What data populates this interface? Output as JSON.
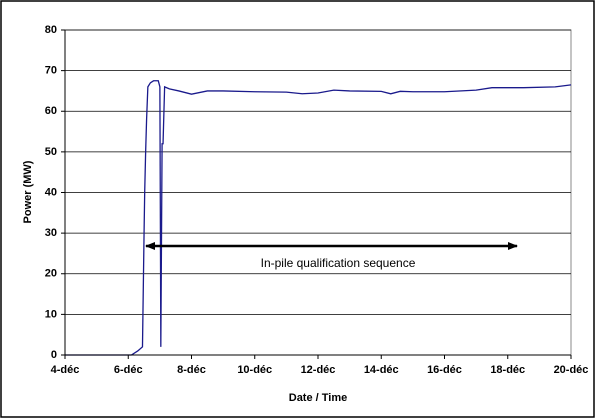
{
  "chart_data": {
    "type": "line",
    "xlabel": "Date / Time",
    "ylabel": "Power (MW)",
    "annotation": "In-pile qualification sequence",
    "color": "#1a1a8c",
    "x": [
      4,
      6.1,
      6.3,
      6.45,
      6.5,
      6.52,
      6.55,
      6.58,
      6.62,
      6.7,
      6.8,
      6.95,
      7.0,
      7.03,
      7.07,
      7.1,
      7.15,
      7.3,
      7.6,
      8.0,
      8.5,
      9,
      10,
      11,
      11.5,
      12,
      12.5,
      13,
      14,
      14.3,
      14.6,
      15,
      16,
      17,
      17.5,
      18.5,
      19.5,
      20
    ],
    "values": [
      0,
      0,
      1,
      2,
      30,
      40,
      50,
      58,
      66,
      67,
      67.5,
      67.5,
      66,
      2,
      52,
      52,
      66,
      65.5,
      65,
      64.2,
      65,
      65,
      64.8,
      64.7,
      64.3,
      64.5,
      65.2,
      65,
      64.9,
      64.3,
      64.9,
      64.8,
      64.8,
      65.2,
      65.8,
      65.8,
      66,
      66.5
    ],
    "xlim": [
      4,
      20
    ],
    "xticks": [
      {
        "value": 4,
        "label": "4-déc"
      },
      {
        "value": 6,
        "label": "6-déc"
      },
      {
        "value": 8,
        "label": "8-déc"
      },
      {
        "value": 10,
        "label": "10-déc"
      },
      {
        "value": 12,
        "label": "12-déc"
      },
      {
        "value": 14,
        "label": "14-déc"
      },
      {
        "value": 16,
        "label": "16-déc"
      },
      {
        "value": 18,
        "label": "18-déc"
      },
      {
        "value": 20,
        "label": "20-déc"
      }
    ],
    "ylim": [
      0,
      80
    ],
    "yticks": [
      0,
      10,
      20,
      30,
      40,
      50,
      60,
      70,
      80
    ],
    "grid": true
  }
}
